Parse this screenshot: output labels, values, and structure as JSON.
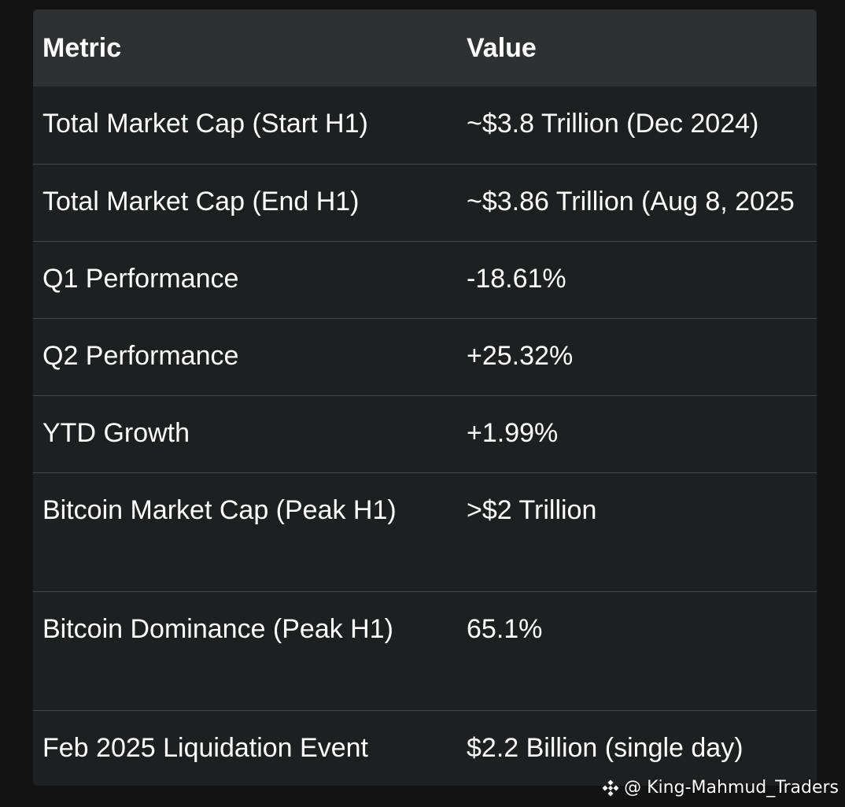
{
  "table": {
    "headers": {
      "metric": "Metric",
      "value": "Value"
    },
    "rows": [
      {
        "metric": "Total Market Cap (Start H1)",
        "value": "~$3.8 Trillion (Dec 2024)"
      },
      {
        "metric": "Total Market Cap (End H1)",
        "value": "~$3.86 Trillion (Aug 8, 2025"
      },
      {
        "metric": "Q1 Performance",
        "value": "-18.61%"
      },
      {
        "metric": "Q2 Performance",
        "value": "+25.32%"
      },
      {
        "metric": "YTD Growth",
        "value": "+1.99%"
      },
      {
        "metric": "Bitcoin Market Cap (Peak H1)",
        "value": ">$2 Trillion"
      },
      {
        "metric": "Bitcoin Dominance (Peak H1)",
        "value": "65.1%"
      },
      {
        "metric": "Feb 2025 Liquidation Event",
        "value": "$2.2 Billion (single day)"
      }
    ]
  },
  "watermark": {
    "logo_icon": "binance-logo-icon",
    "text": "@ King-Mahmud_Traders"
  },
  "colors": {
    "page_background": "#131314",
    "table_background": "#1e1f20",
    "header_background": "#2f3031",
    "row_divider": "#444547",
    "text": "#ffffff"
  }
}
